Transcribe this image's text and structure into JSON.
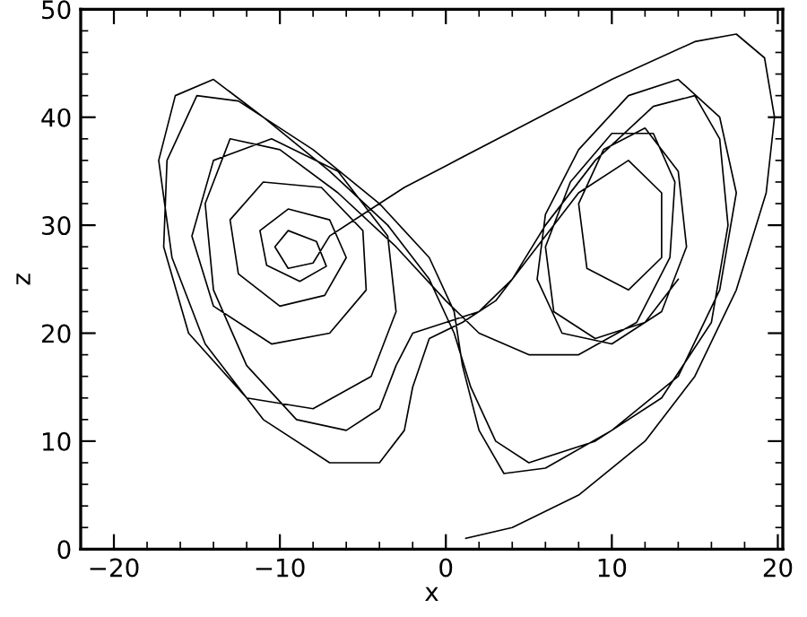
{
  "chart_data": {
    "type": "line",
    "xlabel": "x",
    "ylabel": "z",
    "xlim": [
      -22,
      20.3
    ],
    "ylim": [
      0,
      50
    ],
    "xticks": [
      {
        "value": -22,
        "label": null
      },
      -20,
      {
        "value": -18,
        "label": null
      },
      {
        "value": -16,
        "label": null
      },
      {
        "value": -14,
        "label": null
      },
      {
        "value": -12,
        "label": null
      },
      -10,
      {
        "value": -8,
        "label": null
      },
      {
        "value": -6,
        "label": null
      },
      {
        "value": -4,
        "label": null
      },
      {
        "value": -2,
        "label": null
      },
      0,
      {
        "value": 2,
        "label": null
      },
      {
        "value": 4,
        "label": null
      },
      {
        "value": 6,
        "label": null
      },
      {
        "value": 8,
        "label": null
      },
      10,
      {
        "value": 12,
        "label": null
      },
      {
        "value": 14,
        "label": null
      },
      {
        "value": 16,
        "label": null
      },
      {
        "value": 18,
        "label": null
      },
      20
    ],
    "yticks": [
      0,
      {
        "value": 2,
        "label": null
      },
      {
        "value": 4,
        "label": null
      },
      {
        "value": 6,
        "label": null
      },
      {
        "value": 8,
        "label": null
      },
      10,
      {
        "value": 12,
        "label": null
      },
      {
        "value": 14,
        "label": null
      },
      {
        "value": 16,
        "label": null
      },
      {
        "value": 18,
        "label": null
      },
      20,
      {
        "value": 22,
        "label": null
      },
      {
        "value": 24,
        "label": null
      },
      {
        "value": 26,
        "label": null
      },
      {
        "value": 28,
        "label": null
      },
      30,
      {
        "value": 32,
        "label": null
      },
      {
        "value": 34,
        "label": null
      },
      {
        "value": 36,
        "label": null
      },
      {
        "value": 38,
        "label": null
      },
      40,
      {
        "value": 42,
        "label": null
      },
      {
        "value": 44,
        "label": null
      },
      {
        "value": 46,
        "label": null
      },
      {
        "value": 48,
        "label": null
      },
      50
    ],
    "grid": false,
    "legend": false,
    "marker": "none",
    "line_style": "solid",
    "series": [
      {
        "color": "#000000",
        "x": [
          1.2,
          4,
          8,
          12,
          15,
          17.5,
          19.3,
          19.8,
          19.2,
          17.5,
          15,
          10,
          5,
          0,
          -2.5,
          -4.5,
          -7,
          -8,
          -9.5,
          -10.3,
          -9.5,
          -7.8,
          -7.2,
          -8.8,
          -10.8,
          -11.2,
          -9.5,
          -7,
          -6,
          -7.3,
          -10,
          -12.5,
          -13,
          -11,
          -7.5,
          -5,
          -4.8,
          -7,
          -10.5,
          -14,
          -15.3,
          -14,
          -10.5,
          -6.5,
          -3.5,
          -3,
          -4.5,
          -8,
          -12,
          -15.5,
          -17,
          -16.8,
          -15,
          -12.5,
          -8,
          -4,
          -1,
          0.5,
          1,
          2,
          3.5,
          6,
          10,
          14,
          16.5,
          17.5,
          16.5,
          14,
          11,
          8,
          6,
          5.5,
          7,
          10,
          13,
          14.5,
          14,
          12,
          9.5,
          8,
          8.5,
          11,
          13,
          13,
          11,
          8,
          5,
          3,
          1,
          -1,
          -2,
          -2.5,
          -4,
          -7,
          -11,
          -14.5,
          -16.5,
          -17.3,
          -16.3,
          -14,
          -11,
          -7,
          -3.5,
          -1,
          0.5,
          1.5,
          3,
          5,
          9,
          13,
          16,
          17,
          16.5,
          15,
          12.5,
          9,
          6,
          4,
          2,
          0,
          -2,
          -3,
          -4,
          -6,
          -9,
          -12,
          -14,
          -14.5,
          -13,
          -10,
          -6.5,
          -3,
          0,
          2,
          5,
          8,
          11.5,
          13.5,
          13.8,
          12.5,
          10,
          7.5,
          6,
          6.5,
          9,
          12,
          14
        ],
        "values": [
          1,
          2,
          5,
          10,
          16,
          24,
          33,
          40,
          45.5,
          47.7,
          47,
          43.5,
          39.5,
          35.5,
          33.5,
          31.5,
          29,
          26.5,
          26,
          28,
          29.5,
          28.5,
          26.2,
          24.8,
          26.3,
          29.5,
          31.5,
          30.5,
          27,
          23.5,
          22.5,
          25.5,
          30.5,
          34,
          33.5,
          29.5,
          24,
          20,
          19,
          22.5,
          29,
          36,
          38,
          35,
          29,
          22,
          16,
          13,
          14,
          20,
          28,
          36,
          42,
          41.5,
          37,
          32,
          27,
          22,
          17,
          11,
          7,
          7.5,
          11,
          16,
          24,
          33,
          40,
          43.5,
          42,
          37,
          31,
          25,
          20,
          19,
          22,
          28,
          35,
          39,
          37,
          32,
          26,
          24,
          27,
          33,
          36,
          33,
          27,
          23,
          21,
          19.5,
          15,
          11,
          8,
          8,
          12,
          19,
          27,
          36,
          42,
          43.5,
          40,
          35,
          30,
          25,
          20,
          15,
          10,
          8,
          10,
          14,
          21,
          30,
          38,
          42,
          41,
          36,
          30,
          25,
          22,
          21,
          20,
          17,
          13,
          11,
          12,
          17,
          24,
          32,
          38,
          37,
          33,
          28,
          23,
          20,
          18,
          18,
          21,
          27,
          34,
          38.5,
          38.5,
          34,
          28,
          22,
          19.5,
          21,
          25
        ]
      }
    ]
  }
}
